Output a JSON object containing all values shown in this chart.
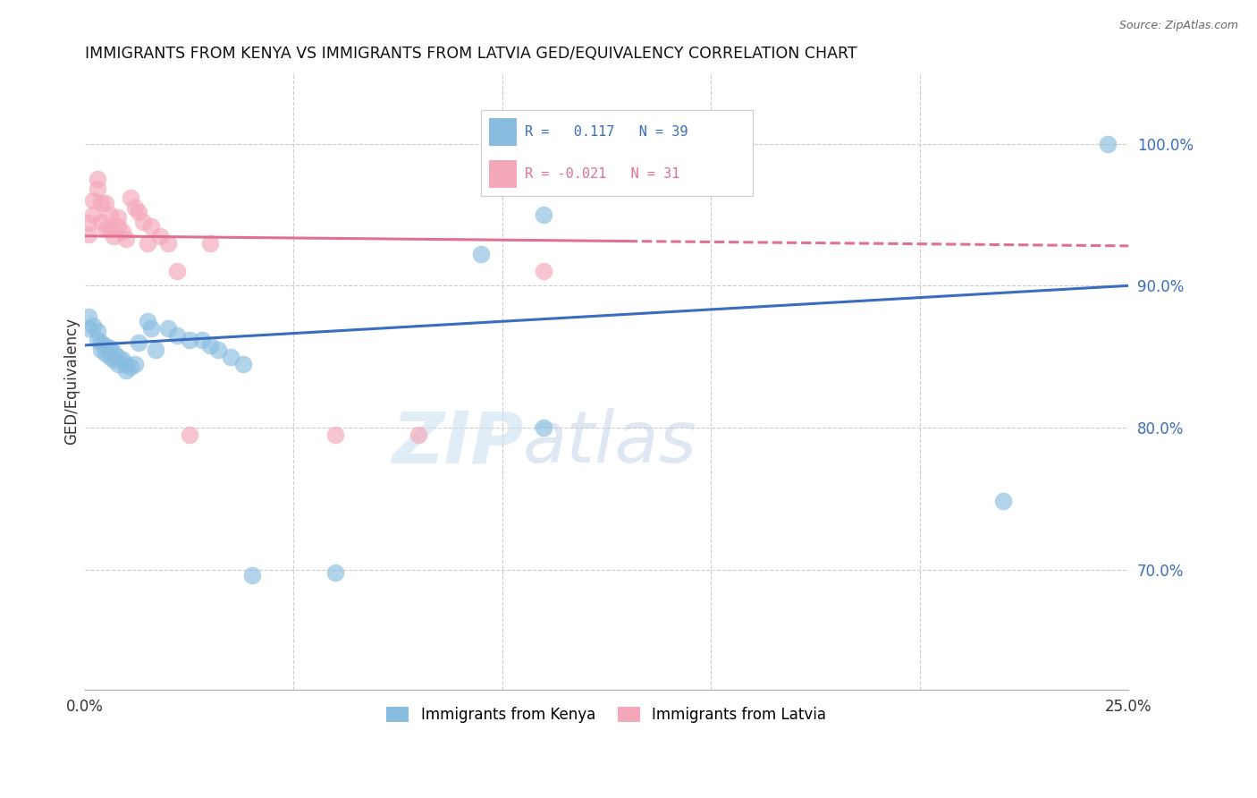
{
  "title": "IMMIGRANTS FROM KENYA VS IMMIGRANTS FROM LATVIA GED/EQUIVALENCY CORRELATION CHART",
  "source": "Source: ZipAtlas.com",
  "ylabel": "GED/Equivalency",
  "ytick_values": [
    0.7,
    0.8,
    0.9,
    1.0
  ],
  "xlim": [
    0.0,
    0.25
  ],
  "ylim": [
    0.615,
    1.05
  ],
  "kenya_color": "#89bde0",
  "latvia_color": "#f4a7b9",
  "kenya_line_color": "#3a6cbf",
  "latvia_line_color": "#e07090",
  "watermark_zip": "ZIP",
  "watermark_atlas": "atlas",
  "kenya_x": [
    0.001,
    0.001,
    0.002,
    0.003,
    0.003,
    0.004,
    0.004,
    0.005,
    0.005,
    0.006,
    0.006,
    0.007,
    0.007,
    0.008,
    0.008,
    0.009,
    0.01,
    0.01,
    0.011,
    0.012,
    0.013,
    0.015,
    0.016,
    0.017,
    0.02,
    0.022,
    0.025,
    0.028,
    0.03,
    0.032,
    0.035,
    0.038,
    0.06,
    0.095,
    0.11,
    0.22,
    0.245,
    0.11,
    0.04
  ],
  "kenya_y": [
    0.878,
    0.87,
    0.872,
    0.868,
    0.862,
    0.86,
    0.855,
    0.857,
    0.852,
    0.856,
    0.85,
    0.853,
    0.848,
    0.85,
    0.845,
    0.848,
    0.845,
    0.84,
    0.843,
    0.845,
    0.86,
    0.875,
    0.87,
    0.855,
    0.87,
    0.865,
    0.862,
    0.862,
    0.858,
    0.855,
    0.85,
    0.845,
    0.698,
    0.922,
    0.95,
    0.748,
    1.0,
    0.8,
    0.696
  ],
  "latvia_x": [
    0.001,
    0.001,
    0.002,
    0.002,
    0.003,
    0.003,
    0.004,
    0.004,
    0.005,
    0.005,
    0.006,
    0.006,
    0.007,
    0.008,
    0.008,
    0.009,
    0.01,
    0.011,
    0.012,
    0.015,
    0.022,
    0.03,
    0.06,
    0.08,
    0.11,
    0.013,
    0.014,
    0.016,
    0.018,
    0.02,
    0.025
  ],
  "latvia_y": [
    0.936,
    0.944,
    0.95,
    0.96,
    0.968,
    0.975,
    0.958,
    0.945,
    0.94,
    0.958,
    0.95,
    0.94,
    0.935,
    0.942,
    0.948,
    0.938,
    0.933,
    0.962,
    0.955,
    0.93,
    0.91,
    0.93,
    0.795,
    0.795,
    0.91,
    0.952,
    0.945,
    0.942,
    0.935,
    0.93,
    0.795
  ]
}
